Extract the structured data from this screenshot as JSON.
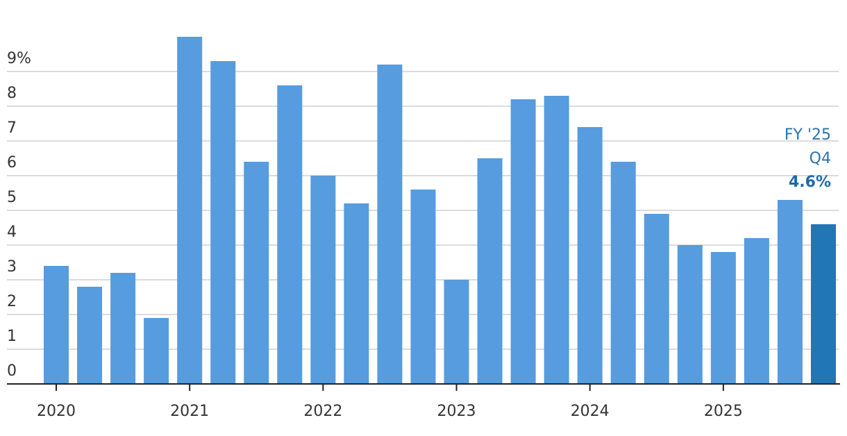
{
  "chart_data": {
    "type": "bar",
    "categories": [
      "2020",
      null,
      null,
      null,
      "2021",
      null,
      null,
      null,
      "2022",
      null,
      null,
      null,
      "2023",
      null,
      null,
      null,
      "2024",
      null,
      null,
      null,
      "2025",
      null,
      null,
      null
    ],
    "values": [
      3.4,
      2.8,
      3.2,
      1.9,
      10.0,
      9.3,
      6.4,
      8.6,
      6.0,
      5.2,
      9.2,
      5.6,
      3.0,
      6.5,
      8.2,
      8.3,
      7.4,
      6.4,
      4.9,
      4.0,
      3.8,
      4.2,
      5.3,
      4.6
    ],
    "value_labels": [
      null,
      null,
      null,
      null,
      null,
      null,
      null,
      null,
      null,
      null,
      null,
      null,
      null,
      null,
      null,
      null,
      null,
      null,
      null,
      null,
      null,
      null,
      null,
      "4.6%"
    ],
    "colors": [
      "#569cde",
      "#569cde",
      "#569cde",
      "#569cde",
      "#569cde",
      "#569cde",
      "#569cde",
      "#569cde",
      "#569cde",
      "#569cde",
      "#569cde",
      "#569cde",
      "#569cde",
      "#569cde",
      "#569cde",
      "#569cde",
      "#569cde",
      "#569cde",
      "#569cde",
      "#569cde",
      "#569cde",
      "#569cde",
      "#569cde",
      "#2176b5"
    ],
    "annotation": [
      "FY '25",
      "Q4"
    ],
    "ylim": [
      0,
      10.3
    ],
    "yticks": [
      0,
      1,
      2,
      3,
      4,
      5,
      6,
      7,
      8,
      {
        "value": 9,
        "label": "9%"
      }
    ],
    "grid": true
  }
}
